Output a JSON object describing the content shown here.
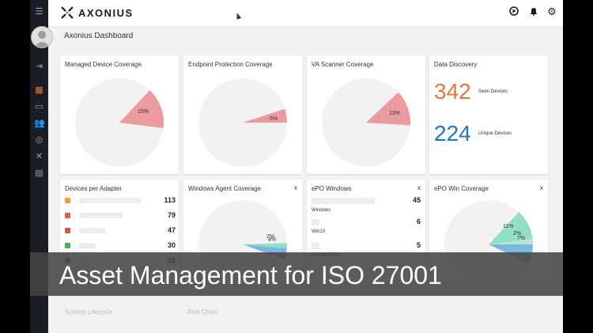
{
  "app": {
    "logo_text": "AXONIUS",
    "page_title": "Axonius Dashboard"
  },
  "caption": "Asset Management for ISO 27001",
  "colors": {
    "sidebar": "#1a1d24",
    "pie_bg": "#f2f2f2",
    "red": "#eb9a9f",
    "orange": "#e8743b",
    "blue": "#2173c5",
    "green": "#8fe0c4",
    "lightblue": "#7ab6e3"
  },
  "sidebar_icons": [
    "menu-icon",
    "avatar",
    "logout-icon",
    "dashboard-icon",
    "devices-icon",
    "users-icon",
    "plugins-icon",
    "adapters-icon",
    "reports-icon"
  ],
  "cards": {
    "managed": {
      "title": "Managed Device Coverage",
      "pct_label": "15%",
      "pct": 15
    },
    "endpoint": {
      "title": "Endpoint Protection Coverage",
      "pct_label": "5%",
      "pct": 5
    },
    "va": {
      "title": "VA Scanner Coverage",
      "pct_label": "13%",
      "pct": 13
    },
    "discovery": {
      "title": "Data Discovery",
      "seen_value": "342",
      "seen_label": "Seen Devices",
      "unique_value": "224",
      "unique_label": "Unique Devices"
    },
    "adapters": {
      "title": "Devices per Adapter",
      "rows": [
        {
          "value": "113",
          "fraction": 1.0,
          "color": "#e8a13b"
        },
        {
          "value": "79",
          "fraction": 0.7,
          "color": "#e05a4f"
        },
        {
          "value": "47",
          "fraction": 0.42,
          "color": "#d9584e"
        },
        {
          "value": "30",
          "fraction": 0.27,
          "color": "#4caf50"
        },
        {
          "value": "22",
          "fraction": 0.19,
          "color": "#2f78c4"
        }
      ]
    },
    "wac": {
      "title": "Windows Agent Coverage",
      "close": "x",
      "pct1_label": "2%",
      "pct2_label": "4%",
      "pct1": 2,
      "pct2": 4
    },
    "epo": {
      "title": "ePO Windows",
      "close": "x",
      "rows": [
        {
          "label": "Windows",
          "value": "45",
          "fraction": 1.0
        },
        {
          "label": "Win10",
          "value": "6",
          "fraction": 0.13
        },
        {
          "label": "McAfee ePO",
          "value": "5",
          "fraction": 0.11
        }
      ]
    },
    "epowin": {
      "title": "ePO Win Coverage",
      "close": "x",
      "pct1_label": "11%",
      "pct2_label": "2%",
      "pct3_label": "7%",
      "pct1": 11,
      "pct2": 2,
      "pct3": 7
    },
    "bottom": {
      "lifecycle": "System Lifecycle",
      "chain": "Risk Chain"
    }
  }
}
